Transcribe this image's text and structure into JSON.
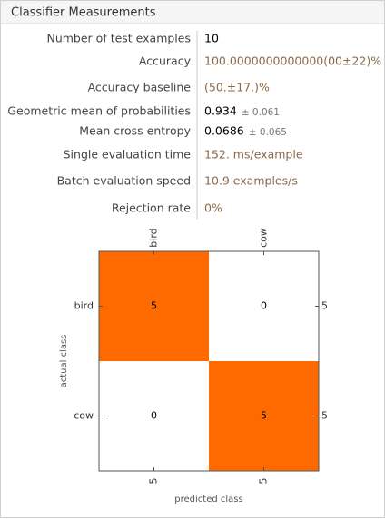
{
  "header": {
    "title": "Classifier Measurements"
  },
  "measurements": [
    {
      "label": "Number of test examples",
      "value": "10",
      "color": "#000000"
    },
    {
      "label": "Accuracy",
      "value": "100.0000000000000(00±22)%",
      "color": "#8a6a4a"
    },
    {
      "label": "Accuracy baseline",
      "value": "(50.±17.)%",
      "color": "#8a6a4a"
    },
    {
      "label": "Geometric mean of probabilities",
      "value": "0.934",
      "error": "± 0.061",
      "color": "#000000"
    },
    {
      "label": "Mean cross entropy",
      "value": "0.0686",
      "error": "± 0.065",
      "color": "#000000"
    },
    {
      "label": "Single evaluation time",
      "value": "152. ms/example",
      "color": "#8a6a4a"
    },
    {
      "label": "Batch evaluation speed",
      "value": "10.9 examples/s",
      "color": "#8a6a4a"
    },
    {
      "label": "Rejection rate",
      "value": "0%",
      "color": "#8a6a4a"
    }
  ],
  "confusion_matrix": {
    "classes": [
      "bird",
      "cow"
    ],
    "counts": [
      [
        5,
        0
      ],
      [
        0,
        5
      ]
    ],
    "row_totals": [
      5,
      5
    ],
    "column_totals": [
      5,
      5
    ],
    "x_label": "predicted class",
    "y_label": "actual class",
    "color": "#ff6a00"
  }
}
